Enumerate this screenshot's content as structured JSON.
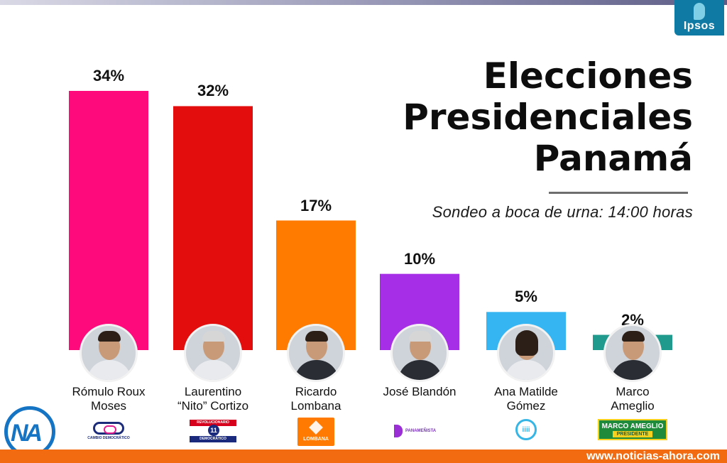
{
  "chart_data": {
    "type": "bar",
    "title": "Elecciones Presidenciales Panamá",
    "title_lines": [
      "Elecciones",
      "Presidenciales",
      "Panamá"
    ],
    "subtitle": "Sondeo a boca de urna: 14:00 horas",
    "xlabel": "",
    "ylabel": "",
    "ylim": [
      0,
      34
    ],
    "grid": false,
    "legend": "none",
    "categories": [
      "Rómulo Roux Moses",
      "Laurentino “Nito” Cortizo",
      "Ricardo Lombana",
      "José Blandón",
      "Ana Matilde Gómez",
      "Marco Ameglio"
    ],
    "values": [
      34,
      32,
      17,
      10,
      5,
      2
    ],
    "value_labels": [
      "34%",
      "32%",
      "17%",
      "10%",
      "5%",
      "2%"
    ],
    "colors": [
      "#ff0a7d",
      "#e30d0d",
      "#ff7b00",
      "#a62ee6",
      "#35b5f2",
      "#1f9a8c"
    ]
  },
  "candidates": [
    {
      "name_lines": [
        "Rómulo Roux",
        "Moses"
      ],
      "avatar": "candidate-photo",
      "party_logo": "cambio-democratico-logo",
      "party_text": "CAMBIO DEMOCRÁTICO"
    },
    {
      "name_lines": [
        "Laurentino",
        "“Nito” Cortizo"
      ],
      "avatar": "candidate-photo",
      "party_logo": "prd-logo",
      "party_text_top": "REVOLUCIONARIO",
      "party_number": "11",
      "party_text_bottom": "DEMOCRÁTICO"
    },
    {
      "name_lines": [
        "Ricardo",
        "Lombana"
      ],
      "avatar": "candidate-photo",
      "party_logo": "lombana-logo",
      "party_text": "LOMBANA"
    },
    {
      "name_lines": [
        "José Blandón"
      ],
      "avatar": "candidate-photo",
      "party_logo": "panamenista-logo",
      "party_text": "PANAMEÑISTA"
    },
    {
      "name_lines": [
        "Ana Matilde",
        "Gómez"
      ],
      "avatar": "candidate-photo",
      "party_logo": "ana-matilde-logo",
      "party_text": "iiii"
    },
    {
      "name_lines": [
        "Marco",
        "Ameglio"
      ],
      "avatar": "candidate-photo",
      "party_logo": "marco-ameglio-logo",
      "party_text": "MARCO AMEGLIO",
      "party_text_bottom": "PRESIDENTE"
    }
  ],
  "branding": {
    "ipsos": "Ipsos",
    "watermark": "NA",
    "footer_url": "www.noticias-ahora.com"
  },
  "colors": {
    "footer": "#f26b10",
    "ipsos": "#0f7aa3",
    "na_logo": "#1674c4"
  }
}
